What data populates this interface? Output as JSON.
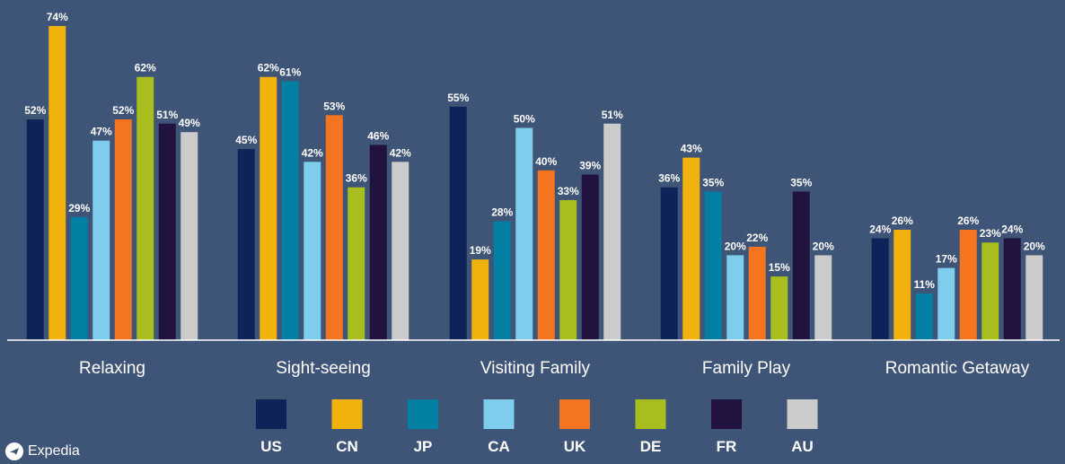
{
  "chart_data": {
    "type": "bar",
    "title": "",
    "xlabel": "",
    "ylabel": "",
    "ylim": [
      0,
      80
    ],
    "grid": false,
    "legend_position": "bottom",
    "value_suffix": "%",
    "categories": [
      "Relaxing",
      "Sight-seeing",
      "Visiting Family",
      "Family Play",
      "Romantic Getaway"
    ],
    "series": [
      {
        "name": "US",
        "color": "#0e2458",
        "values": [
          52,
          45,
          55,
          36,
          24
        ]
      },
      {
        "name": "CN",
        "color": "#f2b20d",
        "values": [
          74,
          62,
          19,
          43,
          26
        ]
      },
      {
        "name": "JP",
        "color": "#027fa2",
        "values": [
          29,
          61,
          28,
          35,
          11
        ]
      },
      {
        "name": "CA",
        "color": "#7fcdec",
        "values": [
          47,
          42,
          50,
          20,
          17
        ]
      },
      {
        "name": "UK",
        "color": "#f47420",
        "values": [
          52,
          53,
          40,
          22,
          26
        ]
      },
      {
        "name": "DE",
        "color": "#a7be1e",
        "values": [
          62,
          36,
          33,
          15,
          23
        ]
      },
      {
        "name": "FR",
        "color": "#22123f",
        "values": [
          51,
          46,
          39,
          35,
          24
        ]
      },
      {
        "name": "AU",
        "color": "#cbcbcb",
        "values": [
          49,
          42,
          51,
          20,
          20
        ]
      }
    ]
  },
  "brand": {
    "logo_text": "Expedia"
  }
}
